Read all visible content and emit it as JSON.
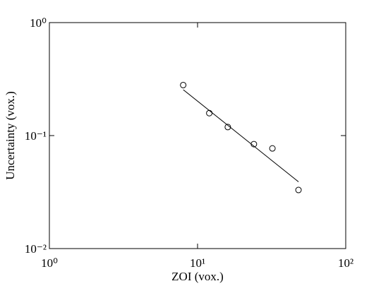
{
  "chart_data": {
    "type": "scatter",
    "xlabel": "ZOI  (vox.)",
    "ylabel": "Uncertainty  (vox.)",
    "xscale": "log",
    "yscale": "log",
    "xlim": [
      1,
      100
    ],
    "ylim": [
      0.01,
      1
    ],
    "xticks": [
      {
        "value": 1,
        "label": "10⁰"
      },
      {
        "value": 10,
        "label": "10¹"
      },
      {
        "value": 100,
        "label": "10²"
      }
    ],
    "yticks": [
      {
        "value": 0.01,
        "label": "10⁻²"
      },
      {
        "value": 0.1,
        "label": "10⁻¹"
      },
      {
        "value": 1,
        "label": "10⁰"
      }
    ],
    "series": [
      {
        "style": "markers",
        "color": "#000000",
        "x": [
          8,
          12,
          16,
          24,
          32,
          48
        ],
        "values": [
          0.28,
          0.158,
          0.119,
          0.084,
          0.077,
          0.033
        ]
      },
      {
        "style": "line",
        "color": "#000000",
        "x": [
          8,
          48
        ],
        "values": [
          0.255,
          0.039
        ]
      }
    ]
  }
}
